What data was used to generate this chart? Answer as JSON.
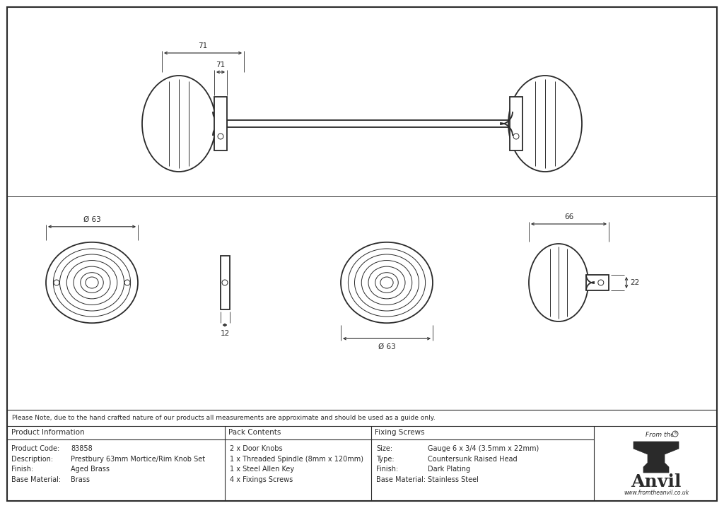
{
  "bg_color": "#ffffff",
  "line_color": "#2a2a2a",
  "note_text": "Please Note, due to the hand crafted nature of our products all measurements are approximate and should be used as a guide only.",
  "table_data": {
    "product_info_header": "Product Information",
    "pack_contents_header": "Pack Contents",
    "fixing_screws_header": "Fixing Screws",
    "product_code_label": "Product Code:",
    "product_code_val": "83858",
    "description_label": "Description:",
    "description_val": "Prestbury 63mm Mortice/Rim Knob Set",
    "finish_label": "Finish:",
    "finish_val": "Aged Brass",
    "base_material_label": "Base Material:",
    "base_material_val": "Brass",
    "pack_line1": "2 x Door Knobs",
    "pack_line2": "1 x Threaded Spindle (8mm x 120mm)",
    "pack_line3": "1 x Steel Allen Key",
    "pack_line4": "4 x Fixings Screws",
    "size_label": "Size:",
    "size_val": "Gauge 6 x 3/4 (3.5mm x 22mm)",
    "type_label": "Type:",
    "type_val": "Countersunk Raised Head",
    "finish2_label": "Finish:",
    "finish2_val": "Dark Plating",
    "base_material2_label": "Base Material:",
    "base_material2_val": "Stainless Steel"
  },
  "dim_71": "71",
  "dim_63_top": "Ø 63",
  "dim_12": "12",
  "dim_63_bottom": "Ø 63",
  "dim_66": "66",
  "dim_22": "22"
}
